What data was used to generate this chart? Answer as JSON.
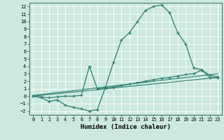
{
  "xlabel": "Humidex (Indice chaleur)",
  "bg_color": "#cce8df",
  "grid_color": "#ffffff",
  "line_color": "#2e7d6e",
  "xlim": [
    -0.5,
    23.5
  ],
  "ylim": [
    -2.5,
    12.5
  ],
  "xticks": [
    0,
    1,
    2,
    3,
    4,
    5,
    6,
    7,
    8,
    9,
    10,
    11,
    12,
    13,
    14,
    15,
    16,
    17,
    18,
    19,
    20,
    21,
    22,
    23
  ],
  "yticks": [
    -2,
    -1,
    0,
    1,
    2,
    3,
    4,
    5,
    6,
    7,
    8,
    9,
    10,
    11,
    12
  ],
  "curve1_x": [
    0,
    1,
    2,
    3,
    4,
    5,
    6,
    7,
    8,
    9,
    10,
    11,
    12,
    13,
    14,
    15,
    16,
    17,
    18,
    19,
    20,
    21,
    22,
    23
  ],
  "curve1_y": [
    0,
    -0.2,
    -0.7,
    -0.5,
    -1.2,
    -1.5,
    -1.7,
    -2.0,
    -1.8,
    1.2,
    4.5,
    7.5,
    8.5,
    10.0,
    11.5,
    12.0,
    12.2,
    11.2,
    8.5,
    7.0,
    3.8,
    3.5,
    2.5,
    2.5
  ],
  "curve2_x": [
    0,
    1,
    2,
    3,
    4,
    5,
    6,
    7,
    8,
    9,
    10,
    11,
    12,
    13,
    14,
    15,
    16,
    17,
    18,
    19,
    20,
    21,
    22,
    23
  ],
  "curve2_y": [
    0,
    -0.1,
    -0.2,
    -0.1,
    0.0,
    0.0,
    0.1,
    4.0,
    1.0,
    1.1,
    1.2,
    1.4,
    1.6,
    1.8,
    2.0,
    2.2,
    2.4,
    2.5,
    2.7,
    2.9,
    3.0,
    3.5,
    2.8,
    2.6
  ],
  "curve3_x": [
    0,
    23
  ],
  "curve3_y": [
    0.0,
    2.5
  ],
  "curve4_x": [
    0,
    23
  ],
  "curve4_y": [
    0.1,
    3.0
  ]
}
